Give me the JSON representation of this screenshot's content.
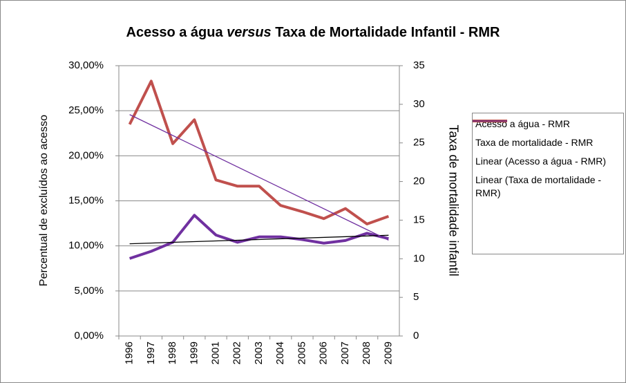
{
  "chart_data": {
    "type": "line",
    "title": [
      "Acesso a água ",
      "versus",
      " Taxa de Mortalidade Infantil - RMR"
    ],
    "ylabel": "Percentual de excluídos ao acesso",
    "y2label": "Taxa de mortalidade infantil",
    "categories": [
      "1996",
      "1997",
      "1998",
      "1999",
      "2001",
      "2002",
      "2003",
      "2004",
      "2005",
      "2006",
      "2007",
      "2008",
      "2009"
    ],
    "series": [
      {
        "name": "Acesso a água - RMR",
        "color": "#7030a0",
        "values": [
          8.6,
          9.4,
          10.4,
          13.4,
          11.2,
          10.4,
          11.0,
          11.0,
          10.7,
          10.3,
          10.6,
          11.4,
          10.8
        ]
      },
      {
        "name": "Taxa de mortalidade - RMR",
        "color": "#c0504d",
        "axis": "y2",
        "values": [
          27.4,
          33.0,
          24.9,
          28.0,
          20.2,
          19.4,
          19.4,
          16.9,
          16.1,
          15.2,
          16.5,
          14.5,
          15.5
        ]
      },
      {
        "name": "Linear (Acesso a água - RMR)",
        "color": "#000000",
        "trend_of": 0
      },
      {
        "name": "Linear (Taxa de mortalidade - RMR)",
        "color": "#7030a0",
        "trend_of": 1,
        "axis": "y2"
      }
    ],
    "ylim": [
      0,
      30
    ],
    "yticks": [
      {
        "value": 0,
        "label": "0,00%"
      },
      {
        "value": 5,
        "label": "5,00%"
      },
      {
        "value": 10,
        "label": "10,00%"
      },
      {
        "value": 15,
        "label": "15,00%"
      },
      {
        "value": 20,
        "label": "20,00%"
      },
      {
        "value": 25,
        "label": "25,00%"
      },
      {
        "value": 30,
        "label": "30,00%"
      }
    ],
    "y2lim": [
      0,
      35
    ],
    "y2ticks": [
      0,
      5,
      10,
      15,
      20,
      25,
      30,
      35
    ],
    "grid": true,
    "legend": "right"
  }
}
